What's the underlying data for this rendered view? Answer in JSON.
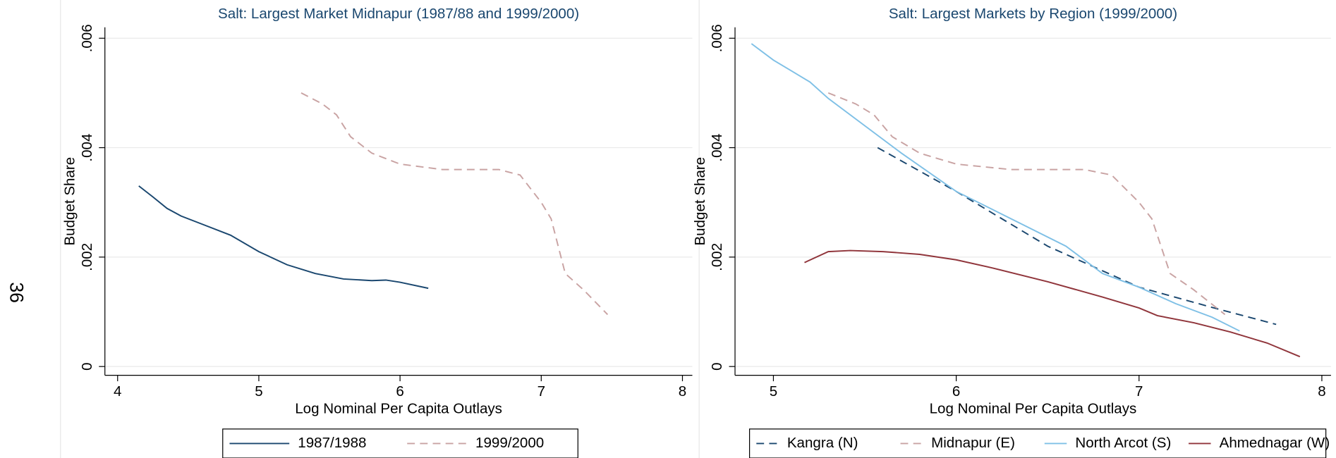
{
  "page_number": "36",
  "chart_data": [
    {
      "type": "line",
      "title": "Salt: Largest Market Midnapur (1987/88 and 1999/2000)",
      "x_label": "Log Nominal Per Capita Outlays",
      "y_label": "Budget Share",
      "xlim": [
        3.91,
        8.07
      ],
      "xticks": [
        4,
        5,
        6,
        7,
        8
      ],
      "ylim": [
        -0.00016,
        0.0062
      ],
      "yticks": [
        0,
        {
          "value": 0.002,
          "label": ".002"
        },
        {
          "value": 0.004,
          "label": ".004"
        },
        {
          "value": 0.006,
          "label": ".006"
        }
      ],
      "grid": true,
      "series": [
        {
          "name": "1987/1988",
          "color": "#1a476f",
          "dash": false,
          "x": [
            4.15,
            4.25,
            4.35,
            4.45,
            4.6,
            4.8,
            5.0,
            5.2,
            5.4,
            5.6,
            5.8,
            5.9,
            6.0,
            6.2
          ],
          "values": [
            0.0033,
            0.0031,
            0.00289,
            0.00275,
            0.0026,
            0.0024,
            0.0021,
            0.00186,
            0.0017,
            0.0016,
            0.00157,
            0.00158,
            0.00154,
            0.00143
          ]
        },
        {
          "name": "1999/2000",
          "color": "#c9a3a3",
          "dash": true,
          "x": [
            5.3,
            5.45,
            5.55,
            5.65,
            5.8,
            6.0,
            6.3,
            6.5,
            6.7,
            6.85,
            7.0,
            7.07,
            7.17,
            7.3,
            7.47
          ],
          "values": [
            0.005,
            0.0048,
            0.0046,
            0.0042,
            0.0039,
            0.0037,
            0.0036,
            0.0036,
            0.0036,
            0.0035,
            0.003,
            0.0027,
            0.0017,
            0.0014,
            0.00095
          ]
        }
      ]
    },
    {
      "type": "line",
      "title": "Salt: Largest Markets by Region (1999/2000)",
      "x_label": "Log Nominal Per Capita Outlays",
      "y_label": "Budget Share",
      "xlim": [
        4.79,
        8.05
      ],
      "xticks": [
        5,
        6,
        7,
        8
      ],
      "ylim": [
        -0.00016,
        0.0062
      ],
      "yticks": [
        0,
        {
          "value": 0.002,
          "label": ".002"
        },
        {
          "value": 0.004,
          "label": ".004"
        },
        {
          "value": 0.006,
          "label": ".006"
        }
      ],
      "grid": true,
      "series": [
        {
          "name": "Kangra (N)",
          "color": "#1a476f",
          "dash": true,
          "x": [
            5.57,
            6.0,
            6.5,
            7.0,
            7.4,
            7.75
          ],
          "values": [
            0.004,
            0.0032,
            0.0022,
            0.00145,
            0.00108,
            0.00077
          ]
        },
        {
          "name": "Midnapur (E)",
          "color": "#c9a3a3",
          "dash": true,
          "x": [
            5.3,
            5.45,
            5.55,
            5.65,
            5.8,
            6.0,
            6.3,
            6.5,
            6.7,
            6.85,
            7.0,
            7.07,
            7.17,
            7.3,
            7.47
          ],
          "values": [
            0.005,
            0.0048,
            0.0046,
            0.0042,
            0.0039,
            0.0037,
            0.0036,
            0.0036,
            0.0036,
            0.0035,
            0.003,
            0.0027,
            0.0017,
            0.0014,
            0.00095
          ]
        },
        {
          "name": "North Arcot (S)",
          "color": "#7fc0e6",
          "dash": false,
          "x": [
            4.88,
            5.0,
            5.1,
            5.2,
            5.3,
            5.5,
            5.7,
            6.0,
            6.3,
            6.6,
            6.8,
            7.0,
            7.2,
            7.4,
            7.55
          ],
          "values": [
            0.0059,
            0.0056,
            0.0054,
            0.0052,
            0.0049,
            0.0044,
            0.0039,
            0.0032,
            0.0027,
            0.0022,
            0.0017,
            0.00145,
            0.00115,
            0.0009,
            0.00065
          ]
        },
        {
          "name": "Ahmednagar (W)",
          "color": "#90353b",
          "dash": false,
          "x": [
            5.17,
            5.3,
            5.42,
            5.6,
            5.8,
            6.0,
            6.2,
            6.5,
            6.8,
            7.0,
            7.1,
            7.3,
            7.5,
            7.7,
            7.88
          ],
          "values": [
            0.0019,
            0.0021,
            0.00212,
            0.0021,
            0.00205,
            0.00195,
            0.0018,
            0.00155,
            0.00127,
            0.00107,
            0.00093,
            0.0008,
            0.00063,
            0.00043,
            0.00018
          ]
        }
      ]
    }
  ]
}
